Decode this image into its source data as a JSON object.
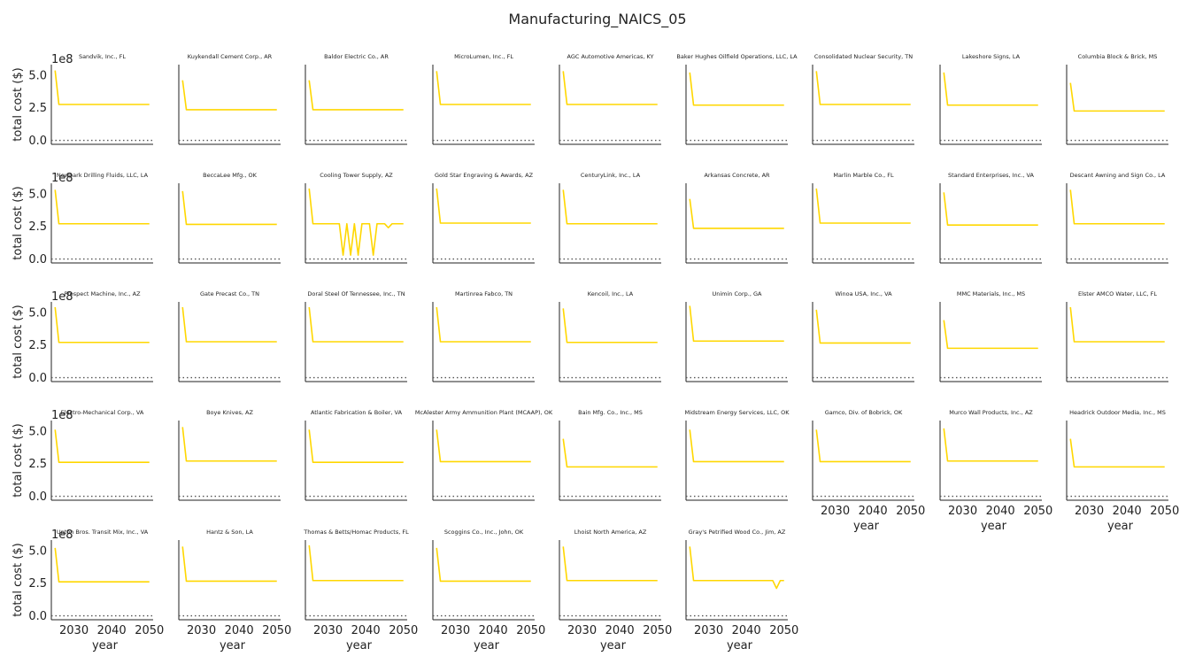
{
  "chart_data": {
    "type": "line",
    "title": "Manufacturing_NAICS_05",
    "xlabel": "year",
    "ylabel": "total cost ($)",
    "y_scale_label": "1e8",
    "xlim": [
      2024,
      2051
    ],
    "ylim": [
      -0.3,
      5.8
    ],
    "x_ticks": [
      2030,
      2040,
      2050
    ],
    "x_tick_labels": [
      "2030",
      "2040",
      "2050"
    ],
    "y_ticks": [
      0.0,
      2.5,
      5.0
    ],
    "y_tick_labels": [
      "0.0",
      "2.5",
      "5.0"
    ],
    "baseline_value": 0,
    "line_color": "#FFD700",
    "baseline_color": "#555555",
    "axis_color": "#222222",
    "panels": [
      {
        "title": "Sandvik, Inc., FL",
        "start": 5.35,
        "level": 2.75
      },
      {
        "title": "Kuykendall Cement Corp., AR",
        "start": 4.6,
        "level": 2.35
      },
      {
        "title": "Baldor Electric Co., AR",
        "start": 4.6,
        "level": 2.35
      },
      {
        "title": "MicroLumen, Inc., FL",
        "start": 5.3,
        "level": 2.75
      },
      {
        "title": "AGC Automotive Americas, KY",
        "start": 5.3,
        "level": 2.75
      },
      {
        "title": "Baker Hughes Oilfield Operations, LLC, LA",
        "start": 5.2,
        "level": 2.7
      },
      {
        "title": "Consolidated Nuclear Security, TN",
        "start": 5.3,
        "level": 2.75
      },
      {
        "title": "Lakeshore Signs, LA",
        "start": 5.2,
        "level": 2.7
      },
      {
        "title": "Columbia Block & Brick, MS",
        "start": 4.4,
        "level": 2.25
      },
      {
        "title": "Newpark Drilling Fluids, LLC, LA",
        "start": 5.3,
        "level": 2.7
      },
      {
        "title": "BeccaLee Mfg., OK",
        "start": 5.2,
        "level": 2.65
      },
      {
        "title": "Cooling Tower Supply, AZ",
        "start": 5.4,
        "level": 2.7,
        "y": [
          5.4,
          2.7,
          2.7,
          2.7,
          2.7,
          2.7,
          2.7,
          2.7,
          2.7,
          0.3,
          2.7,
          0.3,
          2.7,
          0.3,
          2.7,
          2.7,
          2.7,
          0.3,
          2.7,
          2.7,
          2.7,
          2.4,
          2.7,
          2.7,
          2.7,
          2.7
        ]
      },
      {
        "title": "Gold Star Engraving & Awards, AZ",
        "start": 5.4,
        "level": 2.75
      },
      {
        "title": "CenturyLink, Inc., LA",
        "start": 5.3,
        "level": 2.7
      },
      {
        "title": "Arkansas Concrete, AR",
        "start": 4.6,
        "level": 2.35
      },
      {
        "title": "Marlin Marble Co., FL",
        "start": 5.4,
        "level": 2.75
      },
      {
        "title": "Standard Enterprises, Inc., VA",
        "start": 5.1,
        "level": 2.6
      },
      {
        "title": "Descant Awning and Sign Co., LA",
        "start": 5.3,
        "level": 2.7
      },
      {
        "title": "Prospect Machine, Inc., AZ",
        "start": 5.4,
        "level": 2.7
      },
      {
        "title": "Gate Precast Co., TN",
        "start": 5.4,
        "level": 2.75
      },
      {
        "title": "Doral Steel Of Tennessee, Inc., TN",
        "start": 5.4,
        "level": 2.75
      },
      {
        "title": "Martinrea Fabco, TN",
        "start": 5.4,
        "level": 2.75
      },
      {
        "title": "Kencoil, Inc., LA",
        "start": 5.3,
        "level": 2.7
      },
      {
        "title": "Unimin Corp., GA",
        "start": 5.5,
        "level": 2.8
      },
      {
        "title": "Winoa USA, Inc., VA",
        "start": 5.2,
        "level": 2.65
      },
      {
        "title": "MMC Materials, Inc., MS",
        "start": 4.4,
        "level": 2.25
      },
      {
        "title": "Elster AMCO Water, LLC, FL",
        "start": 5.4,
        "level": 2.75
      },
      {
        "title": "Electro-Mechanical Corp., VA",
        "start": 5.1,
        "level": 2.6
      },
      {
        "title": "Boye Knives, AZ",
        "start": 5.3,
        "level": 2.7
      },
      {
        "title": "Atlantic Fabrication & Boiler, VA",
        "start": 5.1,
        "level": 2.6
      },
      {
        "title": "McAlester Army Ammunition Plant (MCAAP), OK",
        "start": 5.1,
        "level": 2.65
      },
      {
        "title": "Bain Mfg. Co., Inc., MS",
        "start": 4.4,
        "level": 2.25
      },
      {
        "title": "Midstream Energy Services, LLC, OK",
        "start": 5.1,
        "level": 2.65
      },
      {
        "title": "Gamco, Div. of Bobrick, OK",
        "start": 5.1,
        "level": 2.65
      },
      {
        "title": "Murco Wall Products, Inc., AZ",
        "start": 5.2,
        "level": 2.7
      },
      {
        "title": "Headrick Outdoor Media, Inc., MS",
        "start": 4.4,
        "level": 2.25
      },
      {
        "title": "Upton Bros. Transit Mix, Inc., VA",
        "start": 5.2,
        "level": 2.6
      },
      {
        "title": "Hantz & Son, LA",
        "start": 5.3,
        "level": 2.65
      },
      {
        "title": "Thomas & Betts/Homac Products, FL",
        "start": 5.4,
        "level": 2.7
      },
      {
        "title": "Scoggins Co., Inc., John, OK",
        "start": 5.2,
        "level": 2.65
      },
      {
        "title": "Lhoist North America, AZ",
        "start": 5.3,
        "level": 2.7
      },
      {
        "title": "Gray's Petrified Wood Co., Jim, AZ",
        "start": 5.3,
        "level": 2.7,
        "y": [
          5.3,
          2.7,
          2.7,
          2.7,
          2.7,
          2.7,
          2.7,
          2.7,
          2.7,
          2.7,
          2.7,
          2.7,
          2.7,
          2.7,
          2.7,
          2.7,
          2.7,
          2.7,
          2.7,
          2.7,
          2.7,
          2.7,
          2.7,
          2.1,
          2.7,
          2.7
        ]
      }
    ]
  }
}
